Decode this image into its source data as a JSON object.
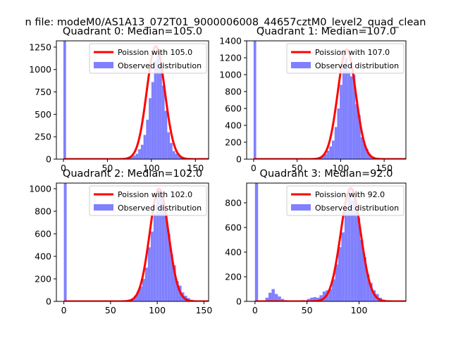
{
  "suptitle": "n file: modeM0/AS1A13_072T01_9000006008_44657cztM0_level2_quad_clean",
  "colors": {
    "poisson": "#ff0000",
    "observed": "#8080ff",
    "text": "#000000"
  },
  "chart_data": [
    {
      "type": "bar",
      "title": "Quadrant 0: Median=105.0",
      "xlim": [
        -8,
        165
      ],
      "ylim": [
        0,
        1320
      ],
      "xticks": [
        0,
        50,
        100,
        150
      ],
      "yticks": [
        0,
        250,
        500,
        750,
        1000,
        1250
      ],
      "legend": {
        "position": "top-right",
        "entries": [
          "Poission with 105.0",
          "Observed distribution"
        ]
      },
      "median": 105.0,
      "poisson_peak": 1260,
      "zero_bar": {
        "x": [
          0,
          3
        ],
        "value": 1320
      },
      "observed": [
        {
          "x": 70,
          "value": 10
        },
        {
          "x": 73,
          "value": 15
        },
        {
          "x": 76,
          "value": 25
        },
        {
          "x": 79,
          "value": 40
        },
        {
          "x": 82,
          "value": 60
        },
        {
          "x": 85,
          "value": 110
        },
        {
          "x": 88,
          "value": 160
        },
        {
          "x": 91,
          "value": 270
        },
        {
          "x": 94,
          "value": 440
        },
        {
          "x": 97,
          "value": 680
        },
        {
          "x": 100,
          "value": 860
        },
        {
          "x": 103,
          "value": 1100
        },
        {
          "x": 106,
          "value": 1200
        },
        {
          "x": 109,
          "value": 1060
        },
        {
          "x": 112,
          "value": 820
        },
        {
          "x": 115,
          "value": 540
        },
        {
          "x": 118,
          "value": 300
        },
        {
          "x": 121,
          "value": 180
        },
        {
          "x": 124,
          "value": 90
        },
        {
          "x": 127,
          "value": 60
        },
        {
          "x": 130,
          "value": 35
        },
        {
          "x": 133,
          "value": 15
        },
        {
          "x": 136,
          "value": 8
        }
      ]
    },
    {
      "type": "bar",
      "title": "Quadrant 1: Median=107.0",
      "xlim": [
        -8,
        175
      ],
      "ylim": [
        0,
        1400
      ],
      "xticks": [
        0,
        50,
        100,
        150
      ],
      "yticks": [
        0,
        200,
        400,
        600,
        800,
        1000,
        1200,
        1400
      ],
      "legend": {
        "position": "top-right",
        "entries": [
          "Poission with 107.0",
          "Observed distribution"
        ]
      },
      "median": 107.0,
      "poisson_peak": 1300,
      "zero_bar": {
        "x": [
          0,
          3
        ],
        "value": 1400
      },
      "observed": [
        {
          "x": 72,
          "value": 10
        },
        {
          "x": 75,
          "value": 20
        },
        {
          "x": 78,
          "value": 40
        },
        {
          "x": 81,
          "value": 60
        },
        {
          "x": 84,
          "value": 100
        },
        {
          "x": 87,
          "value": 150
        },
        {
          "x": 90,
          "value": 220
        },
        {
          "x": 93,
          "value": 380
        },
        {
          "x": 96,
          "value": 600
        },
        {
          "x": 99,
          "value": 880
        },
        {
          "x": 102,
          "value": 1100
        },
        {
          "x": 105,
          "value": 1200
        },
        {
          "x": 108,
          "value": 1050
        },
        {
          "x": 111,
          "value": 980
        },
        {
          "x": 114,
          "value": 1000
        },
        {
          "x": 117,
          "value": 650
        },
        {
          "x": 120,
          "value": 520
        },
        {
          "x": 123,
          "value": 260
        },
        {
          "x": 126,
          "value": 180
        },
        {
          "x": 129,
          "value": 120
        },
        {
          "x": 132,
          "value": 60
        },
        {
          "x": 135,
          "value": 30
        },
        {
          "x": 138,
          "value": 15
        }
      ]
    },
    {
      "type": "bar",
      "title": "Quadrant 2: Median=102.0",
      "xlim": [
        -8,
        155
      ],
      "ylim": [
        0,
        1050
      ],
      "xticks": [
        0,
        50,
        100,
        150
      ],
      "yticks": [
        0,
        200,
        400,
        600,
        800,
        1000
      ],
      "legend": {
        "position": "top-right",
        "entries": [
          "Poission with 102.0",
          "Observed distribution"
        ]
      },
      "median": 102.0,
      "poisson_peak": 1000,
      "zero_bar": {
        "x": [
          0,
          3
        ],
        "value": 1050
      },
      "observed": [
        {
          "x": 69,
          "value": 10
        },
        {
          "x": 72,
          "value": 25
        },
        {
          "x": 75,
          "value": 50
        },
        {
          "x": 78,
          "value": 90
        },
        {
          "x": 81,
          "value": 130
        },
        {
          "x": 84,
          "value": 200
        },
        {
          "x": 87,
          "value": 300
        },
        {
          "x": 90,
          "value": 480
        },
        {
          "x": 93,
          "value": 620
        },
        {
          "x": 96,
          "value": 780
        },
        {
          "x": 99,
          "value": 940
        },
        {
          "x": 102,
          "value": 960
        },
        {
          "x": 105,
          "value": 900
        },
        {
          "x": 108,
          "value": 780
        },
        {
          "x": 111,
          "value": 600
        },
        {
          "x": 114,
          "value": 420
        },
        {
          "x": 117,
          "value": 320
        },
        {
          "x": 120,
          "value": 180
        },
        {
          "x": 123,
          "value": 140
        },
        {
          "x": 126,
          "value": 80
        },
        {
          "x": 129,
          "value": 50
        },
        {
          "x": 132,
          "value": 30
        },
        {
          "x": 135,
          "value": 15
        }
      ]
    },
    {
      "type": "bar",
      "title": "Quadrant 3: Median=92.0",
      "xlim": [
        -8,
        145
      ],
      "ylim": [
        0,
        960
      ],
      "xticks": [
        0,
        50,
        100
      ],
      "yticks": [
        0,
        200,
        400,
        600,
        800
      ],
      "legend": {
        "position": "top-right",
        "entries": [
          "Poission with 92.0",
          "Observed distribution"
        ]
      },
      "median": 92.0,
      "poisson_peak": 920,
      "zero_bar": {
        "x": [
          0,
          3
        ],
        "value": 960
      },
      "observed": [
        {
          "x": 10,
          "value": 30
        },
        {
          "x": 13,
          "value": 70
        },
        {
          "x": 16,
          "value": 100
        },
        {
          "x": 19,
          "value": 60
        },
        {
          "x": 22,
          "value": 40
        },
        {
          "x": 25,
          "value": 20
        },
        {
          "x": 28,
          "value": 10
        },
        {
          "x": 45,
          "value": 10
        },
        {
          "x": 50,
          "value": 20
        },
        {
          "x": 53,
          "value": 30
        },
        {
          "x": 56,
          "value": 35
        },
        {
          "x": 59,
          "value": 30
        },
        {
          "x": 62,
          "value": 50
        },
        {
          "x": 65,
          "value": 80
        },
        {
          "x": 68,
          "value": 90
        },
        {
          "x": 71,
          "value": 100
        },
        {
          "x": 74,
          "value": 180
        },
        {
          "x": 77,
          "value": 300
        },
        {
          "x": 80,
          "value": 440
        },
        {
          "x": 83,
          "value": 560
        },
        {
          "x": 86,
          "value": 760
        },
        {
          "x": 89,
          "value": 900
        },
        {
          "x": 92,
          "value": 820
        },
        {
          "x": 95,
          "value": 830
        },
        {
          "x": 98,
          "value": 680
        },
        {
          "x": 101,
          "value": 500
        },
        {
          "x": 104,
          "value": 360
        },
        {
          "x": 107,
          "value": 220
        },
        {
          "x": 110,
          "value": 150
        },
        {
          "x": 113,
          "value": 90
        },
        {
          "x": 116,
          "value": 60
        },
        {
          "x": 119,
          "value": 30
        },
        {
          "x": 122,
          "value": 15
        }
      ]
    }
  ]
}
